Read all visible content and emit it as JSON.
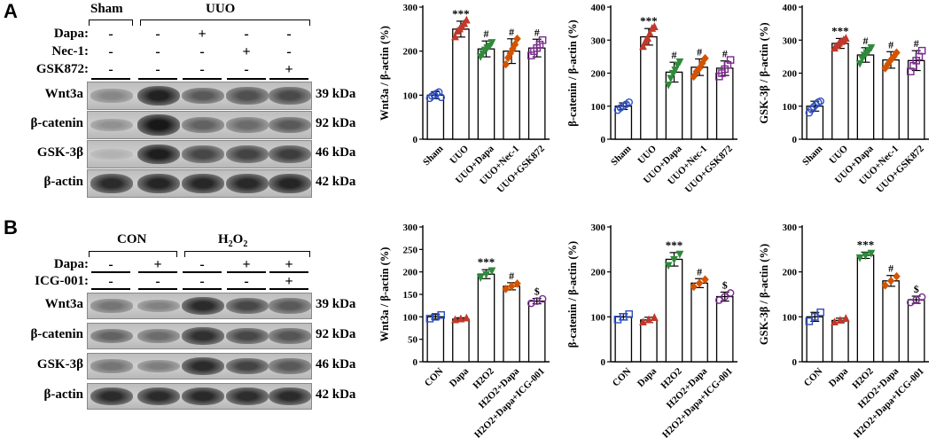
{
  "panels": [
    {
      "label": "A",
      "blot": {
        "group_headers": [
          "Sham",
          "UUO"
        ],
        "conditions": [
          {
            "name": "Dapa:",
            "signs": [
              "-",
              "-",
              "+",
              "-",
              "-"
            ]
          },
          {
            "name": "Nec-1:",
            "signs": [
              "-",
              "-",
              "-",
              "+",
              "-"
            ]
          },
          {
            "name": "GSK872:",
            "signs": [
              "-",
              "-",
              "-",
              "-",
              "+"
            ]
          }
        ],
        "proteins": [
          {
            "name": "Wnt3a",
            "kda": "39 kDa",
            "levels": [
              0.35,
              0.9,
              0.6,
              0.65,
              0.68
            ]
          },
          {
            "name": "β-catenin",
            "kda": "92 kDa",
            "levels": [
              0.3,
              0.95,
              0.55,
              0.5,
              0.6
            ]
          },
          {
            "name": "GSK-3β",
            "kda": "46 kDa",
            "levels": [
              0.12,
              0.92,
              0.7,
              0.72,
              0.75
            ]
          },
          {
            "name": "β-actin",
            "kda": "42 kDa",
            "levels": [
              0.85,
              0.88,
              0.87,
              0.86,
              0.88
            ]
          }
        ]
      },
      "charts": [
        {
          "type": "bar",
          "ylabel": "Wnt3a / β-actin (%)",
          "ylim": [
            0,
            300
          ],
          "yticks": [
            0,
            100,
            200,
            300
          ],
          "categories": [
            "Sham",
            "UUO",
            "UUO+Dapa",
            "UUO+Nec-1",
            "UUO+GSK872"
          ],
          "values": [
            100,
            250,
            205,
            200,
            207
          ],
          "errors": [
            8,
            18,
            18,
            28,
            20
          ],
          "points": [
            [
              93,
              98,
              100,
              104,
              107,
              95
            ],
            [
              232,
              245,
              250,
              255,
              262,
              270
            ],
            [
              188,
              195,
              203,
              208,
              212,
              220
            ],
            [
              170,
              185,
              195,
              205,
              215,
              228
            ],
            [
              190,
              200,
              207,
              215,
              225
            ]
          ],
          "annotations": [
            "",
            "***",
            "#",
            "#",
            "#"
          ],
          "colors": [
            "#2f4fbf",
            "#c0392b",
            "#2e8b3a",
            "#d35400",
            "#7b2a8e"
          ],
          "markers": [
            "circle",
            "triangle",
            "down-triangle",
            "diamond",
            "square"
          ]
        },
        {
          "type": "bar",
          "ylabel": "β-catenin / β-actin (%)",
          "ylim": [
            0,
            400
          ],
          "yticks": [
            0,
            100,
            200,
            300,
            400
          ],
          "categories": [
            "Sham",
            "UUO",
            "UUO+Dapa",
            "UUO+Nec-1",
            "UUO+GSK872"
          ],
          "values": [
            100,
            310,
            203,
            218,
            215
          ],
          "errors": [
            10,
            25,
            30,
            25,
            22
          ],
          "points": [
            [
              88,
              95,
              100,
              106,
              112
            ],
            [
              280,
              295,
              305,
              320,
              335,
              340
            ],
            [
              165,
              185,
              200,
              210,
              225,
              235
            ],
            [
              190,
              205,
              215,
              230,
              245
            ],
            [
              190,
              200,
              212,
              225,
              240
            ]
          ],
          "annotations": [
            "",
            "***",
            "#",
            "#",
            "#"
          ],
          "colors": [
            "#2f4fbf",
            "#c0392b",
            "#2e8b3a",
            "#d35400",
            "#7b2a8e"
          ],
          "markers": [
            "circle",
            "triangle",
            "down-triangle",
            "diamond",
            "square"
          ]
        },
        {
          "type": "bar",
          "ylabel": "GSK-3β / β-actin (%)",
          "ylim": [
            0,
            400
          ],
          "yticks": [
            0,
            100,
            200,
            300,
            400
          ],
          "categories": [
            "Sham",
            "UUO",
            "UUO+Dapa",
            "UUO+Nec-1",
            "UUO+GSK872"
          ],
          "values": [
            100,
            290,
            255,
            240,
            238
          ],
          "errors": [
            15,
            15,
            22,
            25,
            30
          ],
          "points": [
            [
              80,
              90,
              98,
              105,
              112,
              115
            ],
            [
              275,
              282,
              290,
              295,
              300,
              305
            ],
            [
              230,
              245,
              255,
              262,
              270,
              278
            ],
            [
              215,
              228,
              240,
              250,
              262
            ],
            [
              205,
              222,
              238,
              250,
              268
            ]
          ],
          "annotations": [
            "",
            "***",
            "#",
            "#",
            "#"
          ],
          "colors": [
            "#2f4fbf",
            "#c0392b",
            "#2e8b3a",
            "#d35400",
            "#7b2a8e"
          ],
          "markers": [
            "circle",
            "triangle",
            "down-triangle",
            "diamond",
            "square"
          ]
        }
      ]
    },
    {
      "label": "B",
      "blot": {
        "group_headers": [
          "CON",
          "H2O2"
        ],
        "conditions": [
          {
            "name": "Dapa:",
            "signs": [
              "-",
              "+",
              "-",
              "+",
              "+"
            ]
          },
          {
            "name": "ICG-001:",
            "signs": [
              "-",
              "-",
              "-",
              "-",
              "+"
            ]
          }
        ],
        "proteins": [
          {
            "name": "Wnt3a",
            "kda": "39 kDa",
            "levels": [
              0.45,
              0.38,
              0.85,
              0.7,
              0.6
            ]
          },
          {
            "name": "β-catenin",
            "kda": "92 kDa",
            "levels": [
              0.55,
              0.5,
              0.82,
              0.7,
              0.62
            ]
          },
          {
            "name": "GSK-3β",
            "kda": "46 kDa",
            "levels": [
              0.45,
              0.4,
              0.85,
              0.72,
              0.6
            ]
          },
          {
            "name": "β-actin",
            "kda": "42 kDa",
            "levels": [
              0.85,
              0.85,
              0.86,
              0.84,
              0.85
            ]
          }
        ]
      },
      "charts": [
        {
          "type": "bar",
          "ylabel": "Wnt3a / β-actin (%)",
          "ylim": [
            0,
            300
          ],
          "yticks": [
            0,
            50,
            100,
            150,
            200,
            250,
            300
          ],
          "categories": [
            "CON",
            "Dapa",
            "H2O2",
            "H2O2+Dapa",
            "H2O2+Dapa+ICG-001"
          ],
          "values": [
            100,
            95,
            195,
            168,
            135
          ],
          "errors": [
            5,
            3,
            10,
            8,
            6
          ],
          "points": [
            [
              96,
              100,
              104
            ],
            [
              93,
              95,
              97
            ],
            [
              188,
              195,
              203
            ],
            [
              162,
              168,
              174
            ],
            [
              130,
              135,
              140
            ]
          ],
          "annotations": [
            "",
            "",
            "***",
            "#",
            "$"
          ],
          "colors": [
            "#2f4fbf",
            "#c0392b",
            "#2e8b3a",
            "#d35400",
            "#7b2a8e"
          ],
          "markers": [
            "square",
            "triangle",
            "down-triangle",
            "diamond",
            "circle"
          ]
        },
        {
          "type": "bar",
          "ylabel": "β-catenin / β-actin (%)",
          "ylim": [
            0,
            300
          ],
          "yticks": [
            0,
            100,
            200,
            300
          ],
          "categories": [
            "CON",
            "Dapa",
            "H2O2",
            "H2O2+Dapa",
            "H2O2+Dapa+ICG-001"
          ],
          "values": [
            100,
            93,
            228,
            175,
            145
          ],
          "errors": [
            7,
            6,
            15,
            10,
            10
          ],
          "points": [
            [
              94,
              100,
              106
            ],
            [
              88,
              93,
              98
            ],
            [
              215,
              228,
              240
            ],
            [
              167,
              175,
              183
            ],
            [
              137,
              145,
              153
            ]
          ],
          "annotations": [
            "",
            "",
            "***",
            "#",
            "$"
          ],
          "colors": [
            "#2f4fbf",
            "#c0392b",
            "#2e8b3a",
            "#d35400",
            "#7b2a8e"
          ],
          "markers": [
            "square",
            "triangle",
            "down-triangle",
            "diamond",
            "circle"
          ]
        },
        {
          "type": "bar",
          "ylabel": "GSK-3β / β-actin (%)",
          "ylim": [
            0,
            300
          ],
          "yticks": [
            0,
            100,
            200,
            300
          ],
          "categories": [
            "CON",
            "Dapa",
            "H2O2",
            "H2O2+Dapa",
            "H2O2+Dapa+ICG-001"
          ],
          "values": [
            100,
            92,
            237,
            180,
            138
          ],
          "errors": [
            10,
            5,
            7,
            12,
            8
          ],
          "points": [
            [
              90,
              100,
              110
            ],
            [
              88,
              92,
              96
            ],
            [
              232,
              237,
              242
            ],
            [
              170,
              180,
              190
            ],
            [
              132,
              138,
              144
            ]
          ],
          "annotations": [
            "",
            "",
            "***",
            "#",
            "$"
          ],
          "colors": [
            "#2f4fbf",
            "#c0392b",
            "#2e8b3a",
            "#d35400",
            "#7b2a8e"
          ],
          "markers": [
            "square",
            "triangle",
            "down-triangle",
            "diamond",
            "circle"
          ]
        }
      ]
    }
  ]
}
